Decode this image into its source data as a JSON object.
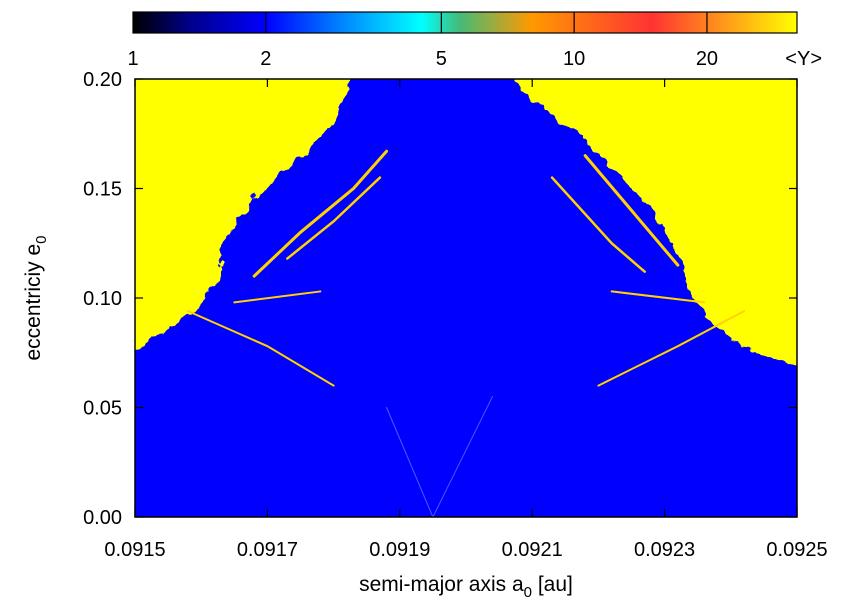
{
  "chart_data": {
    "type": "heatmap",
    "xlabel": "semi-major axis a",
    "xlabel_sub": "0",
    "xlabel_unit": " [au]",
    "ylabel": "eccentriciy e",
    "ylabel_sub": "0",
    "xlim": [
      0.0915,
      0.0925
    ],
    "ylim": [
      0.0,
      0.2
    ],
    "x_ticks": [
      {
        "value": 0.0915,
        "label": "0.0915"
      },
      {
        "value": 0.0917,
        "label": "0.0917"
      },
      {
        "value": 0.0919,
        "label": "0.0919"
      },
      {
        "value": 0.0921,
        "label": "0.0921"
      },
      {
        "value": 0.0923,
        "label": "0.0923"
      },
      {
        "value": 0.0925,
        "label": "0.0925"
      }
    ],
    "y_ticks": [
      {
        "value": 0.0,
        "label": "0.00"
      },
      {
        "value": 0.05,
        "label": "0.05"
      },
      {
        "value": 0.1,
        "label": "0.10"
      },
      {
        "value": 0.15,
        "label": "0.15"
      },
      {
        "value": 0.2,
        "label": "0.20"
      }
    ],
    "colorbar": {
      "title": "<Y>",
      "scale": "log",
      "range": [
        1,
        32
      ],
      "ticks": [
        {
          "value": 1,
          "label": "1"
        },
        {
          "value": 2,
          "label": "2"
        },
        {
          "value": 5,
          "label": "5"
        },
        {
          "value": 10,
          "label": "10"
        },
        {
          "value": 20,
          "label": "20"
        }
      ],
      "colors": [
        {
          "value": 1,
          "color": "#000000"
        },
        {
          "value": 1.35,
          "color": "#00008b"
        },
        {
          "value": 2,
          "color": "#0000ff"
        },
        {
          "value": 3,
          "color": "#0088ff"
        },
        {
          "value": 4.5,
          "color": "#00ffff"
        },
        {
          "value": 5.5,
          "color": "#44bb77"
        },
        {
          "value": 8,
          "color": "#ff9900"
        },
        {
          "value": 15,
          "color": "#ff3333"
        },
        {
          "value": 32,
          "color": "#ffff00"
        }
      ]
    },
    "regions": {
      "regular_color": "#0000ff",
      "chaotic_color": "#ffff00",
      "chaotic_left_boundary": [
        [
          0.0915,
          0.076
        ],
        [
          0.09155,
          0.086
        ],
        [
          0.0916,
          0.097
        ],
        [
          0.09163,
          0.11
        ],
        [
          0.09163,
          0.125
        ],
        [
          0.09168,
          0.145
        ],
        [
          0.09175,
          0.165
        ],
        [
          0.0918,
          0.18
        ],
        [
          0.09183,
          0.2
        ]
      ],
      "chaotic_right_boundary": [
        [
          0.09207,
          0.2
        ],
        [
          0.0921,
          0.19
        ],
        [
          0.09217,
          0.175
        ],
        [
          0.09222,
          0.16
        ],
        [
          0.09228,
          0.14
        ],
        [
          0.09232,
          0.12
        ],
        [
          0.09234,
          0.1
        ],
        [
          0.0924,
          0.08
        ],
        [
          0.0925,
          0.068
        ]
      ]
    }
  }
}
